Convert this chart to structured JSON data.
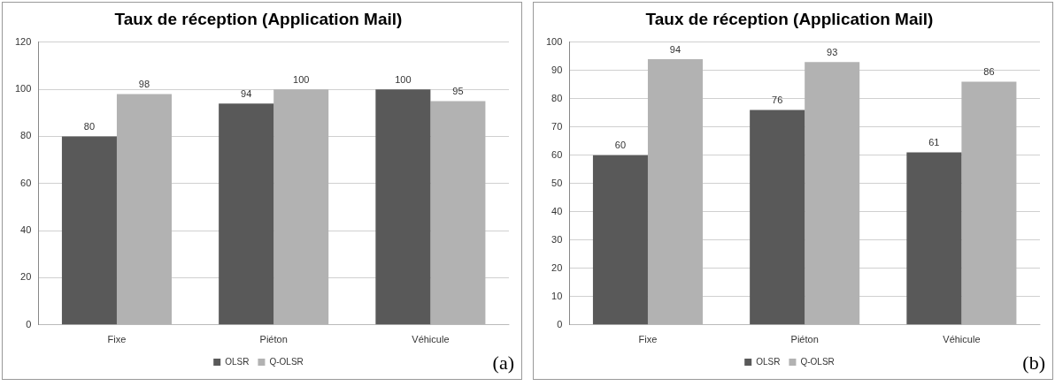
{
  "chart_data": [
    {
      "type": "bar",
      "title": "Taux de réception (Application Mail)",
      "categories": [
        "Fixe",
        "Piéton",
        "Véhicule"
      ],
      "series": [
        {
          "name": "OLSR",
          "color": "#595959",
          "values": [
            80,
            94,
            100
          ]
        },
        {
          "name": "Q-OLSR",
          "color": "#b2b2b2",
          "values": [
            98,
            100,
            95
          ]
        }
      ],
      "ylim": [
        0,
        120
      ],
      "yticks": [
        0,
        20,
        40,
        60,
        80,
        100,
        120
      ],
      "grid": "y",
      "legend": "bottom",
      "data_labels": true,
      "annotations": [
        "(a)"
      ]
    },
    {
      "type": "bar",
      "title": "Taux de réception (Application Mail)",
      "categories": [
        "Fixe",
        "Piéton",
        "Véhicule"
      ],
      "series": [
        {
          "name": "OLSR",
          "color": "#595959",
          "values": [
            60,
            76,
            61
          ]
        },
        {
          "name": "Q-OLSR",
          "color": "#b2b2b2",
          "values": [
            94,
            93,
            86
          ]
        }
      ],
      "ylim": [
        0,
        100
      ],
      "yticks": [
        0,
        10,
        20,
        30,
        40,
        50,
        60,
        70,
        80,
        90,
        100
      ],
      "grid": "y",
      "legend": "bottom",
      "data_labels": true,
      "annotations": [
        "(b)"
      ]
    }
  ]
}
